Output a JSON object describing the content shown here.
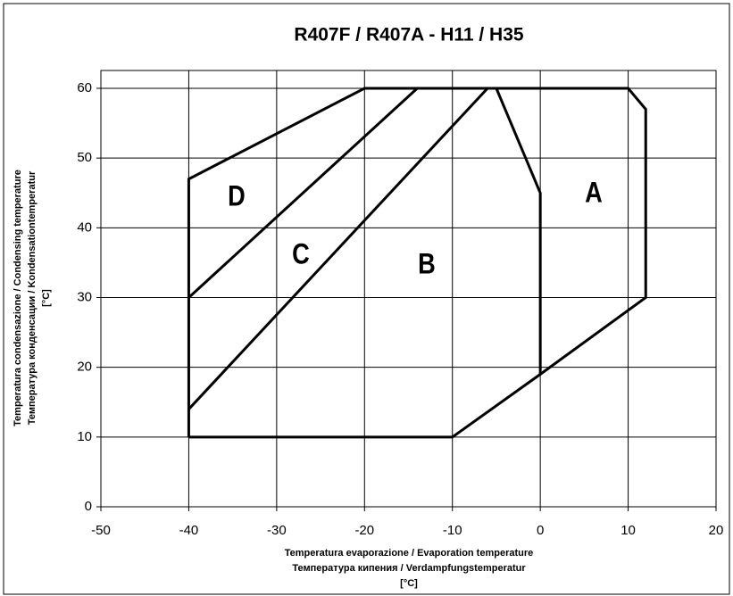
{
  "chart_data": {
    "type": "line",
    "title": "R407F / R407A - H11 / H35",
    "x_label": [
      "Temperatura evaporazione / Evaporation temperature",
      "Температура кипения / Verdampfungstemperatur",
      "[°C]"
    ],
    "y_label": [
      "Temperatura condensazione / Condensing temperature",
      "Температура конденсации / Kondensationtemperatur",
      "[°C]"
    ],
    "xlim": [
      -50,
      20
    ],
    "xticks": [
      -50,
      -40,
      -30,
      -20,
      -10,
      0,
      10,
      20
    ],
    "ylim": [
      0,
      60
    ],
    "yticks": [
      0,
      10,
      20,
      30,
      40,
      50,
      60
    ],
    "grid": true,
    "annotations": [
      "A",
      "B",
      "C",
      "D"
    ],
    "series": [
      {
        "color": "#000000",
        "x": [
          -40,
          -40,
          -20,
          10,
          12,
          12,
          0,
          -10,
          -40
        ],
        "values": [
          10,
          47,
          60,
          60,
          57,
          30,
          19,
          10,
          10
        ]
      },
      {
        "color": "#000000",
        "x": [
          -40,
          -14
        ],
        "values": [
          30,
          60
        ]
      },
      {
        "color": "#000000",
        "x": [
          -40,
          -6
        ],
        "values": [
          14,
          60
        ]
      },
      {
        "color": "#000000",
        "x": [
          -5,
          0,
          0
        ],
        "values": [
          60,
          45,
          19
        ]
      }
    ]
  }
}
